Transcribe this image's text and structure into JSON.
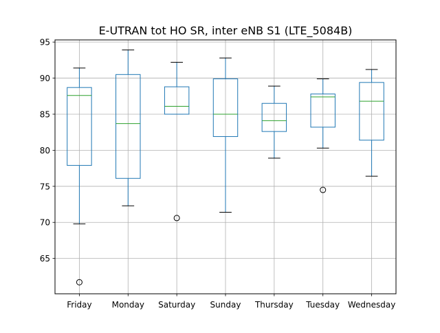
{
  "chart_data": {
    "type": "box",
    "title": "E-UTRAN tot HO SR, inter eNB S1 (LTE_5084B)",
    "xlabel": "",
    "ylabel": "",
    "ylim": [
      60.1,
      95.3
    ],
    "yticks": [
      65,
      70,
      75,
      80,
      85,
      90,
      95
    ],
    "grid": true,
    "colors": {
      "box": "#1f77b4",
      "median": "#2ca02c",
      "whisker_cap": "#000000",
      "grid": "#b0b0b0"
    },
    "categories": [
      "Friday",
      "Monday",
      "Saturday",
      "Sunday",
      "Thursday",
      "Tuesday",
      "Wednesday"
    ],
    "boxes": [
      {
        "q1": 77.9,
        "median": 87.6,
        "q3": 88.7,
        "whisker_low": 69.8,
        "whisker_high": 91.4,
        "outliers": [
          61.7
        ]
      },
      {
        "q1": 76.1,
        "median": 83.7,
        "q3": 90.5,
        "whisker_low": 72.3,
        "whisker_high": 93.9,
        "outliers": []
      },
      {
        "q1": 85.0,
        "median": 86.1,
        "q3": 88.8,
        "whisker_low": 85.0,
        "whisker_high": 92.2,
        "outliers": [
          70.6
        ]
      },
      {
        "q1": 81.9,
        "median": 85.0,
        "q3": 89.9,
        "whisker_low": 71.4,
        "whisker_high": 92.8,
        "outliers": []
      },
      {
        "q1": 82.6,
        "median": 84.1,
        "q3": 86.5,
        "whisker_low": 78.9,
        "whisker_high": 88.9,
        "outliers": []
      },
      {
        "q1": 83.2,
        "median": 87.4,
        "q3": 87.8,
        "whisker_low": 80.3,
        "whisker_high": 89.9,
        "outliers": [
          74.5
        ]
      },
      {
        "q1": 81.4,
        "median": 86.8,
        "q3": 89.4,
        "whisker_low": 76.4,
        "whisker_high": 91.2,
        "outliers": []
      }
    ]
  }
}
